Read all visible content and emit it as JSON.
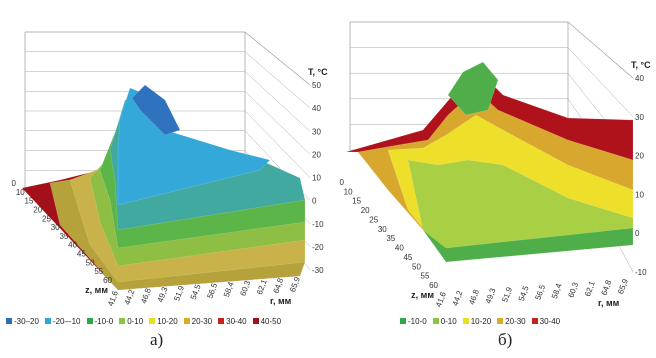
{
  "chart_data": [
    {
      "panel": "a)",
      "type": "surface",
      "zlabel": "T, °C",
      "zlim": [
        -30,
        50
      ],
      "zticks": [
        "-30",
        "-20",
        "-10",
        "0",
        "10",
        "20",
        "30",
        "40",
        "50"
      ],
      "depth_label": "z, мм",
      "depth_ticks": [
        "0",
        "10",
        "15",
        "20",
        "25",
        "30",
        "35",
        "40",
        "45",
        "50",
        "55",
        "60"
      ],
      "x_label": "r, мм",
      "x_ticks": [
        "41,6",
        "44,2",
        "46,8",
        "49,3",
        "51,9",
        "54,5",
        "56,5",
        "58,4",
        "60,3",
        "62,1",
        "64,8",
        "65,9"
      ],
      "legend": [
        {
          "label": "-30–20",
          "color": "#2b6fb8"
        },
        {
          "label": "-20–-10",
          "color": "#31a8dc"
        },
        {
          "label": "-10-0",
          "color": "#2aa84a"
        },
        {
          "label": "0-10",
          "color": "#8cc63f"
        },
        {
          "label": "10-20",
          "color": "#e6e020"
        },
        {
          "label": "20-30",
          "color": "#e0a827"
        },
        {
          "label": "30-40",
          "color": "#c4241c"
        },
        {
          "label": "40-50",
          "color": "#a4101a"
        }
      ],
      "bands": [
        {
          "range": "40-50",
          "color": "#a4101a"
        },
        {
          "range": "30-40",
          "color": "#b5a23a"
        },
        {
          "range": "20-30",
          "color": "#c9b24a"
        },
        {
          "range": "10-20",
          "color": "#8fbe44"
        },
        {
          "range": "0-10",
          "color": "#5cb548"
        },
        {
          "range": "-10-0",
          "color": "#42a9a0"
        },
        {
          "range": "-20–-10",
          "color": "#34a8d9"
        },
        {
          "range": "-30–20",
          "color": "#2f72bd"
        }
      ]
    },
    {
      "panel": "б)",
      "type": "surface",
      "zlabel": "T, °C",
      "zlim": [
        -10,
        40
      ],
      "zticks": [
        "-10",
        "0",
        "10",
        "20",
        "30",
        "40"
      ],
      "depth_label": "z, мм",
      "depth_ticks": [
        "0",
        "10",
        "15",
        "20",
        "25",
        "30",
        "35",
        "40",
        "45",
        "50",
        "55",
        "60"
      ],
      "x_label": "r, мм",
      "x_ticks": [
        "41,6",
        "44,2",
        "46,8",
        "49,3",
        "51,9",
        "54,5",
        "56,5",
        "58,4",
        "60,3",
        "62,1",
        "64,8",
        "65,9"
      ],
      "legend": [
        {
          "label": "-10-0",
          "color": "#2aa84a"
        },
        {
          "label": "0-10",
          "color": "#8cc63f"
        },
        {
          "label": "10-20",
          "color": "#e6e020"
        },
        {
          "label": "20-30",
          "color": "#e0a827"
        },
        {
          "label": "30-40",
          "color": "#c4241c"
        }
      ],
      "bands": [
        {
          "range": "30-40",
          "color": "#b0121c"
        },
        {
          "range": "20-30",
          "color": "#d7a72e"
        },
        {
          "range": "10-20",
          "color": "#eedf2a"
        },
        {
          "range": "0-10",
          "color": "#a9cf45"
        },
        {
          "range": "-10-0",
          "color": "#4fae4a"
        }
      ]
    }
  ]
}
